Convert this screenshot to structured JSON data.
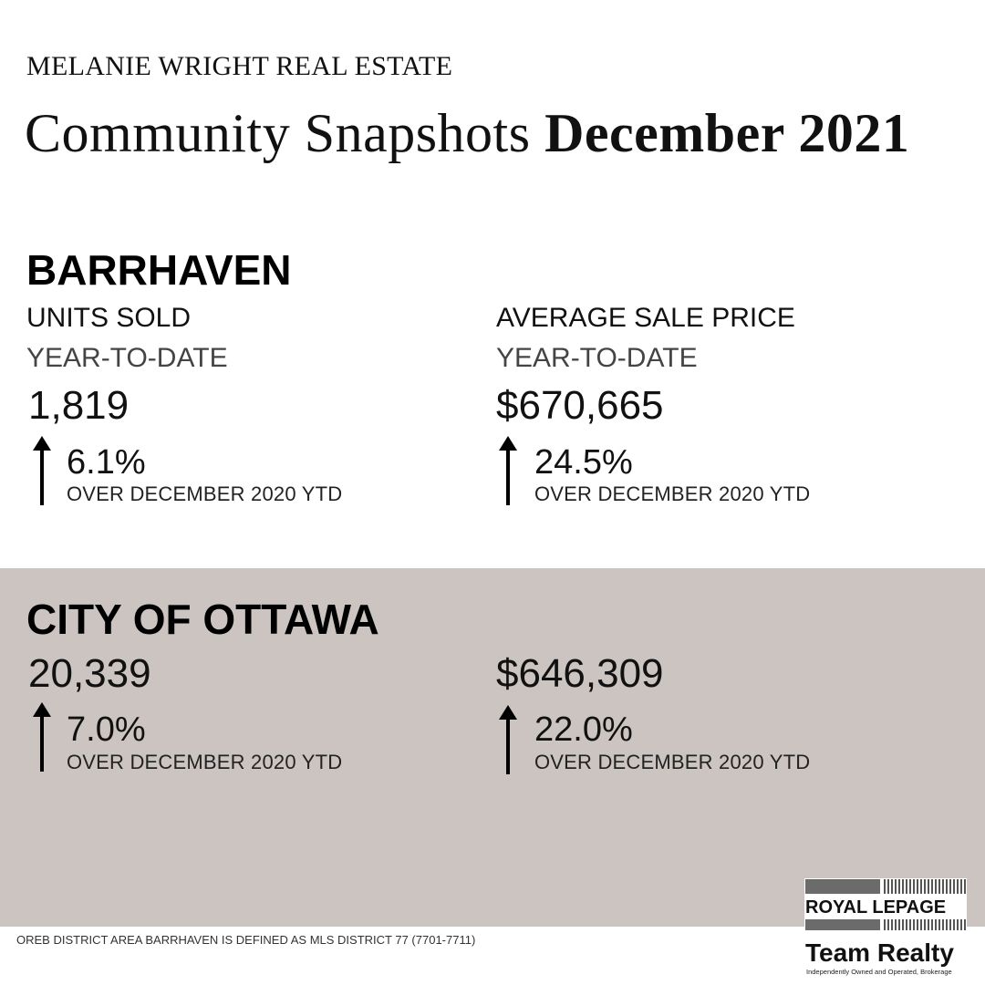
{
  "header": {
    "brand": "MELANIE WRIGHT REAL ESTATE",
    "title_regular": "Community Snapshots",
    "title_bold": "December 2021"
  },
  "barrhaven": {
    "title": "BARRHAVEN",
    "units": {
      "label": "UNITS SOLD",
      "sublabel": "YEAR-TO-DATE",
      "value": "1,819",
      "change": "6.1%",
      "change_note": "OVER DECEMBER 2020 YTD"
    },
    "price": {
      "label": "AVERAGE SALE PRICE",
      "sublabel": "YEAR-TO-DATE",
      "value": "$670,665",
      "change": "24.5%",
      "change_note": "OVER DECEMBER 2020 YTD"
    }
  },
  "ottawa": {
    "title": "CITY OF OTTAWA",
    "units": {
      "value": "20,339",
      "change": "7.0%",
      "change_note": "OVER DECEMBER 2020 YTD"
    },
    "price": {
      "value": "$646,309",
      "change": "22.0%",
      "change_note": "OVER DECEMBER 2020 YTD"
    }
  },
  "footer": {
    "footnote": "OREB DISTRICT AREA BARRHAVEN IS DEFINED AS MLS DISTRICT 77 (7701-7711)",
    "logo_line1": "ROYAL LEPAGE",
    "logo_line2": "Team Realty",
    "logo_line3": "Independently Owned and Operated, Brokerage"
  },
  "colors": {
    "background": "#ffffff",
    "ottawa_band": "#cbc4c0",
    "text": "#111111"
  },
  "icons": {
    "trend": "arrow-up-icon"
  }
}
